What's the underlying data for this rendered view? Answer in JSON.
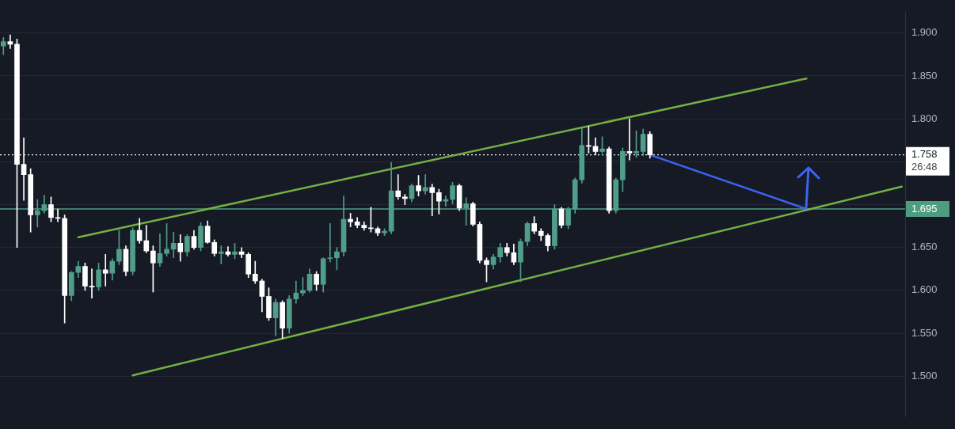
{
  "chart_data": {
    "type": "candlestick",
    "categories": [
      null,
      null,
      null,
      null,
      null,
      null,
      null,
      null,
      null,
      null,
      null,
      null,
      null,
      null,
      null,
      null,
      null,
      null,
      null,
      null,
      null,
      null,
      null,
      null,
      null,
      null,
      null,
      null,
      null,
      null,
      null,
      null,
      null,
      null,
      null,
      null,
      null,
      null,
      null,
      null,
      null,
      null,
      null,
      null,
      null,
      null,
      null,
      null,
      null,
      null,
      null,
      null,
      null,
      null,
      null,
      null,
      null,
      null,
      null,
      null,
      null,
      null,
      null,
      null,
      null,
      null,
      null,
      null,
      null,
      null,
      null,
      null,
      null,
      null,
      null,
      null,
      null,
      null,
      null,
      null,
      null,
      null,
      null,
      null,
      null,
      null,
      null,
      null,
      null,
      null,
      null,
      null,
      null,
      null,
      null,
      null,
      null,
      null,
      null,
      null,
      null,
      null,
      null,
      null,
      null,
      null,
      null,
      null,
      null,
      null,
      null,
      null,
      null,
      null,
      null,
      null,
      null,
      null,
      null,
      null,
      null,
      null,
      null,
      null,
      null,
      null,
      null,
      null,
      null,
      null,
      null,
      null,
      null
    ],
    "ohlc": [
      [
        1.885,
        1.895,
        1.875,
        1.89
      ],
      [
        1.89,
        1.898,
        1.882,
        1.887
      ],
      [
        1.887,
        1.893,
        1.65,
        1.747
      ],
      [
        1.747,
        1.778,
        1.705,
        1.735
      ],
      [
        1.735,
        1.742,
        1.668,
        1.688
      ],
      [
        1.688,
        1.706,
        1.674,
        1.693
      ],
      [
        1.693,
        1.711,
        1.69,
        1.7
      ],
      [
        1.7,
        1.709,
        1.68,
        1.685
      ],
      [
        1.685,
        1.695,
        1.68,
        1.684
      ],
      [
        1.684,
        1.688,
        1.562,
        1.594
      ],
      [
        1.594,
        1.622,
        1.588,
        1.621
      ],
      [
        1.621,
        1.634,
        1.615,
        1.628
      ],
      [
        1.628,
        1.632,
        1.6,
        1.605
      ],
      [
        1.605,
        1.625,
        1.591,
        1.604
      ],
      [
        1.604,
        1.632,
        1.6,
        1.624
      ],
      [
        1.624,
        1.642,
        1.605,
        1.62
      ],
      [
        1.62,
        1.637,
        1.612,
        1.634
      ],
      [
        1.634,
        1.67,
        1.63,
        1.648
      ],
      [
        1.648,
        1.652,
        1.617,
        1.622
      ],
      [
        1.622,
        1.673,
        1.618,
        1.67
      ],
      [
        1.67,
        1.684,
        1.655,
        1.658
      ],
      [
        1.658,
        1.676,
        1.644,
        1.646
      ],
      [
        1.646,
        1.652,
        1.598,
        1.632
      ],
      [
        1.632,
        1.666,
        1.628,
        1.643
      ],
      [
        1.643,
        1.678,
        1.64,
        1.648
      ],
      [
        1.648,
        1.668,
        1.638,
        1.655
      ],
      [
        1.655,
        1.665,
        1.634,
        1.645
      ],
      [
        1.645,
        1.665,
        1.64,
        1.663
      ],
      [
        1.663,
        1.67,
        1.648,
        1.65
      ],
      [
        1.65,
        1.679,
        1.646,
        1.675
      ],
      [
        1.675,
        1.681,
        1.655,
        1.656
      ],
      [
        1.656,
        1.659,
        1.64,
        1.643
      ],
      [
        1.643,
        1.652,
        1.631,
        1.645
      ],
      [
        1.645,
        1.651,
        1.64,
        1.642
      ],
      [
        1.642,
        1.655,
        1.637,
        1.645
      ],
      [
        1.645,
        1.65,
        1.638,
        1.642
      ],
      [
        1.642,
        1.644,
        1.615,
        1.619
      ],
      [
        1.619,
        1.634,
        1.608,
        1.611
      ],
      [
        1.611,
        1.613,
        1.575,
        1.593
      ],
      [
        1.593,
        1.603,
        1.565,
        1.568
      ],
      [
        1.568,
        1.59,
        1.547,
        1.586
      ],
      [
        1.586,
        1.588,
        1.544,
        1.556
      ],
      [
        1.556,
        1.594,
        1.55,
        1.59
      ],
      [
        1.59,
        1.611,
        1.585,
        1.597
      ],
      [
        1.597,
        1.615,
        1.594,
        1.6
      ],
      [
        1.6,
        1.625,
        1.598,
        1.619
      ],
      [
        1.619,
        1.622,
        1.6,
        1.607
      ],
      [
        1.607,
        1.638,
        1.598,
        1.637
      ],
      [
        1.637,
        1.678,
        1.633,
        1.638
      ],
      [
        1.638,
        1.65,
        1.624,
        1.645
      ],
      [
        1.645,
        1.71,
        1.64,
        1.683
      ],
      [
        1.683,
        1.69,
        1.674,
        1.68
      ],
      [
        1.68,
        1.685,
        1.673,
        1.676
      ],
      [
        1.676,
        1.68,
        1.67,
        1.673
      ],
      [
        1.673,
        1.697,
        1.668,
        1.672
      ],
      [
        1.672,
        1.674,
        1.664,
        1.667
      ],
      [
        1.667,
        1.672,
        1.664,
        1.669
      ],
      [
        1.669,
        1.749,
        1.666,
        1.716
      ],
      [
        1.716,
        1.735,
        1.706,
        1.709
      ],
      [
        1.709,
        1.712,
        1.7,
        1.707
      ],
      [
        1.707,
        1.724,
        1.703,
        1.722
      ],
      [
        1.722,
        1.734,
        1.71,
        1.716
      ],
      [
        1.716,
        1.735,
        1.712,
        1.72
      ],
      [
        1.72,
        1.724,
        1.687,
        1.714
      ],
      [
        1.714,
        1.718,
        1.689,
        1.704
      ],
      [
        1.704,
        1.71,
        1.698,
        1.706
      ],
      [
        1.706,
        1.726,
        1.701,
        1.722
      ],
      [
        1.722,
        1.724,
        1.693,
        1.696
      ],
      [
        1.696,
        1.708,
        1.676,
        1.701
      ],
      [
        1.701,
        1.703,
        1.675,
        1.677
      ],
      [
        1.677,
        1.68,
        1.632,
        1.635
      ],
      [
        1.635,
        1.638,
        1.61,
        1.63
      ],
      [
        1.63,
        1.642,
        1.625,
        1.639
      ],
      [
        1.639,
        1.655,
        1.633,
        1.65
      ],
      [
        1.65,
        1.655,
        1.64,
        1.644
      ],
      [
        1.644,
        1.654,
        1.63,
        1.633
      ],
      [
        1.633,
        1.66,
        1.61,
        1.657
      ],
      [
        1.657,
        1.68,
        1.652,
        1.678
      ],
      [
        1.678,
        1.686,
        1.666,
        1.669
      ],
      [
        1.669,
        1.672,
        1.658,
        1.664
      ],
      [
        1.664,
        1.666,
        1.646,
        1.652
      ],
      [
        1.652,
        1.7,
        1.648,
        1.695
      ],
      [
        1.695,
        1.697,
        1.673,
        1.676
      ],
      [
        1.676,
        1.697,
        1.672,
        1.695
      ],
      [
        1.695,
        1.731,
        1.69,
        1.729
      ],
      [
        1.729,
        1.789,
        1.725,
        1.769
      ],
      [
        1.769,
        1.791,
        1.76,
        1.768
      ],
      [
        1.768,
        1.778,
        1.758,
        1.762
      ],
      [
        1.762,
        1.779,
        1.76,
        1.765
      ],
      [
        1.765,
        1.767,
        1.69,
        1.693
      ],
      [
        1.693,
        1.731,
        1.69,
        1.729
      ],
      [
        1.729,
        1.766,
        1.715,
        1.762
      ],
      [
        1.762,
        1.8,
        1.752,
        1.76
      ],
      [
        1.76,
        1.786,
        1.755,
        1.762
      ],
      [
        1.762,
        1.788,
        1.757,
        1.782
      ],
      [
        1.782,
        1.785,
        1.754,
        1.758
      ],
      null,
      null,
      null,
      null,
      null,
      null,
      null,
      null,
      null,
      null,
      null,
      null,
      null,
      null,
      null,
      null,
      null,
      null,
      null,
      null,
      null,
      null,
      null,
      null,
      null,
      null,
      null,
      null,
      null,
      null,
      null,
      null,
      null,
      null,
      null,
      null,
      null
    ],
    "series": [
      {
        "type": "line",
        "color": "#72b043",
        "values": [
          null,
          null,
          null,
          null,
          null,
          null,
          null,
          null,
          null,
          null,
          null,
          1.662,
          null,
          null,
          null,
          null,
          null,
          null,
          null,
          null,
          null,
          null,
          null,
          null,
          null,
          null,
          null,
          null,
          null,
          null,
          null,
          null,
          null,
          null,
          null,
          null,
          null,
          null,
          null,
          null,
          null,
          null,
          null,
          null,
          null,
          null,
          null,
          null,
          null,
          null,
          null,
          null,
          null,
          null,
          null,
          null,
          null,
          null,
          null,
          null,
          null,
          null,
          null,
          null,
          null,
          null,
          null,
          null,
          null,
          null,
          null,
          null,
          null,
          null,
          null,
          null,
          null,
          null,
          null,
          null,
          null,
          null,
          null,
          null,
          null,
          null,
          null,
          null,
          null,
          null,
          null,
          null,
          null,
          null,
          null,
          null,
          null,
          null,
          null,
          null,
          null,
          null,
          null,
          null,
          null,
          null,
          null,
          null,
          null,
          null,
          null,
          null,
          null,
          null,
          null,
          null,
          null,
          null,
          1.847,
          null,
          null,
          null,
          null,
          null,
          null,
          null,
          null,
          null,
          null,
          null,
          null,
          null,
          null
        ]
      },
      {
        "type": "line",
        "color": "#72b043",
        "values": [
          null,
          null,
          null,
          null,
          null,
          null,
          null,
          null,
          null,
          null,
          null,
          null,
          null,
          null,
          null,
          null,
          null,
          null,
          null,
          1.501,
          null,
          null,
          null,
          null,
          null,
          null,
          null,
          null,
          null,
          null,
          null,
          null,
          null,
          null,
          null,
          null,
          null,
          null,
          null,
          null,
          null,
          null,
          null,
          null,
          null,
          null,
          null,
          null,
          null,
          null,
          null,
          null,
          null,
          null,
          null,
          null,
          null,
          null,
          null,
          null,
          null,
          null,
          null,
          null,
          null,
          null,
          null,
          null,
          null,
          null,
          null,
          null,
          null,
          null,
          null,
          null,
          null,
          null,
          null,
          null,
          null,
          null,
          null,
          null,
          null,
          null,
          null,
          null,
          null,
          null,
          null,
          null,
          null,
          null,
          null,
          null,
          null,
          null,
          null,
          null,
          null,
          null,
          null,
          null,
          null,
          null,
          null,
          null,
          null,
          null,
          null,
          null,
          null,
          null,
          null,
          null,
          null,
          null,
          null,
          null,
          null,
          null,
          null,
          null,
          null,
          null,
          null,
          null,
          null,
          null,
          null,
          null,
          1.721
        ]
      },
      {
        "type": "line",
        "color": "#3d63f5",
        "values": [
          null,
          null,
          null,
          null,
          null,
          null,
          null,
          null,
          null,
          null,
          null,
          null,
          null,
          null,
          null,
          null,
          null,
          null,
          null,
          null,
          null,
          null,
          null,
          null,
          null,
          null,
          null,
          null,
          null,
          null,
          null,
          null,
          null,
          null,
          null,
          null,
          null,
          null,
          null,
          null,
          null,
          null,
          null,
          null,
          null,
          null,
          null,
          null,
          null,
          null,
          null,
          null,
          null,
          null,
          null,
          null,
          null,
          null,
          null,
          null,
          null,
          null,
          null,
          null,
          null,
          null,
          null,
          null,
          null,
          null,
          null,
          null,
          null,
          null,
          null,
          null,
          null,
          null,
          null,
          null,
          null,
          null,
          null,
          null,
          null,
          null,
          null,
          null,
          null,
          null,
          null,
          null,
          null,
          null,
          null,
          1.758,
          null,
          null,
          null,
          null,
          null,
          null,
          null,
          null,
          null,
          null,
          null,
          null,
          null,
          null,
          null,
          null,
          null,
          null,
          null,
          null,
          null,
          null,
          1.695,
          null,
          null,
          null,
          null,
          null,
          null,
          null,
          null,
          null,
          null,
          null,
          null,
          null,
          null
        ]
      }
    ],
    "ylim": [
      1.453,
      1.924
    ],
    "yticks": [
      {
        "value": 1.5,
        "label": "1.500"
      },
      {
        "value": 1.55,
        "label": "1.550"
      },
      {
        "value": 1.6,
        "label": "1.600"
      },
      {
        "value": 1.65,
        "label": "1.650"
      },
      {
        "value": 1.7,
        "label": null
      },
      {
        "value": 1.75,
        "label": null
      },
      {
        "value": 1.8,
        "label": "1.800"
      },
      {
        "value": 1.85,
        "label": "1.850"
      },
      {
        "value": 1.9,
        "label": "1.900"
      }
    ],
    "ref_lines": [
      {
        "axis": "y",
        "value": 1.695,
        "label": "1.695",
        "color": "#4e9d83",
        "line_style": "solid"
      },
      {
        "axis": "y",
        "value": 1.758,
        "label": "1.758",
        "color": "#ffffff",
        "line_style": "dotted"
      }
    ],
    "annotations": [
      "26:48"
    ],
    "grid": "y",
    "legend": false,
    "tick_labels": "y",
    "marker": "none"
  }
}
